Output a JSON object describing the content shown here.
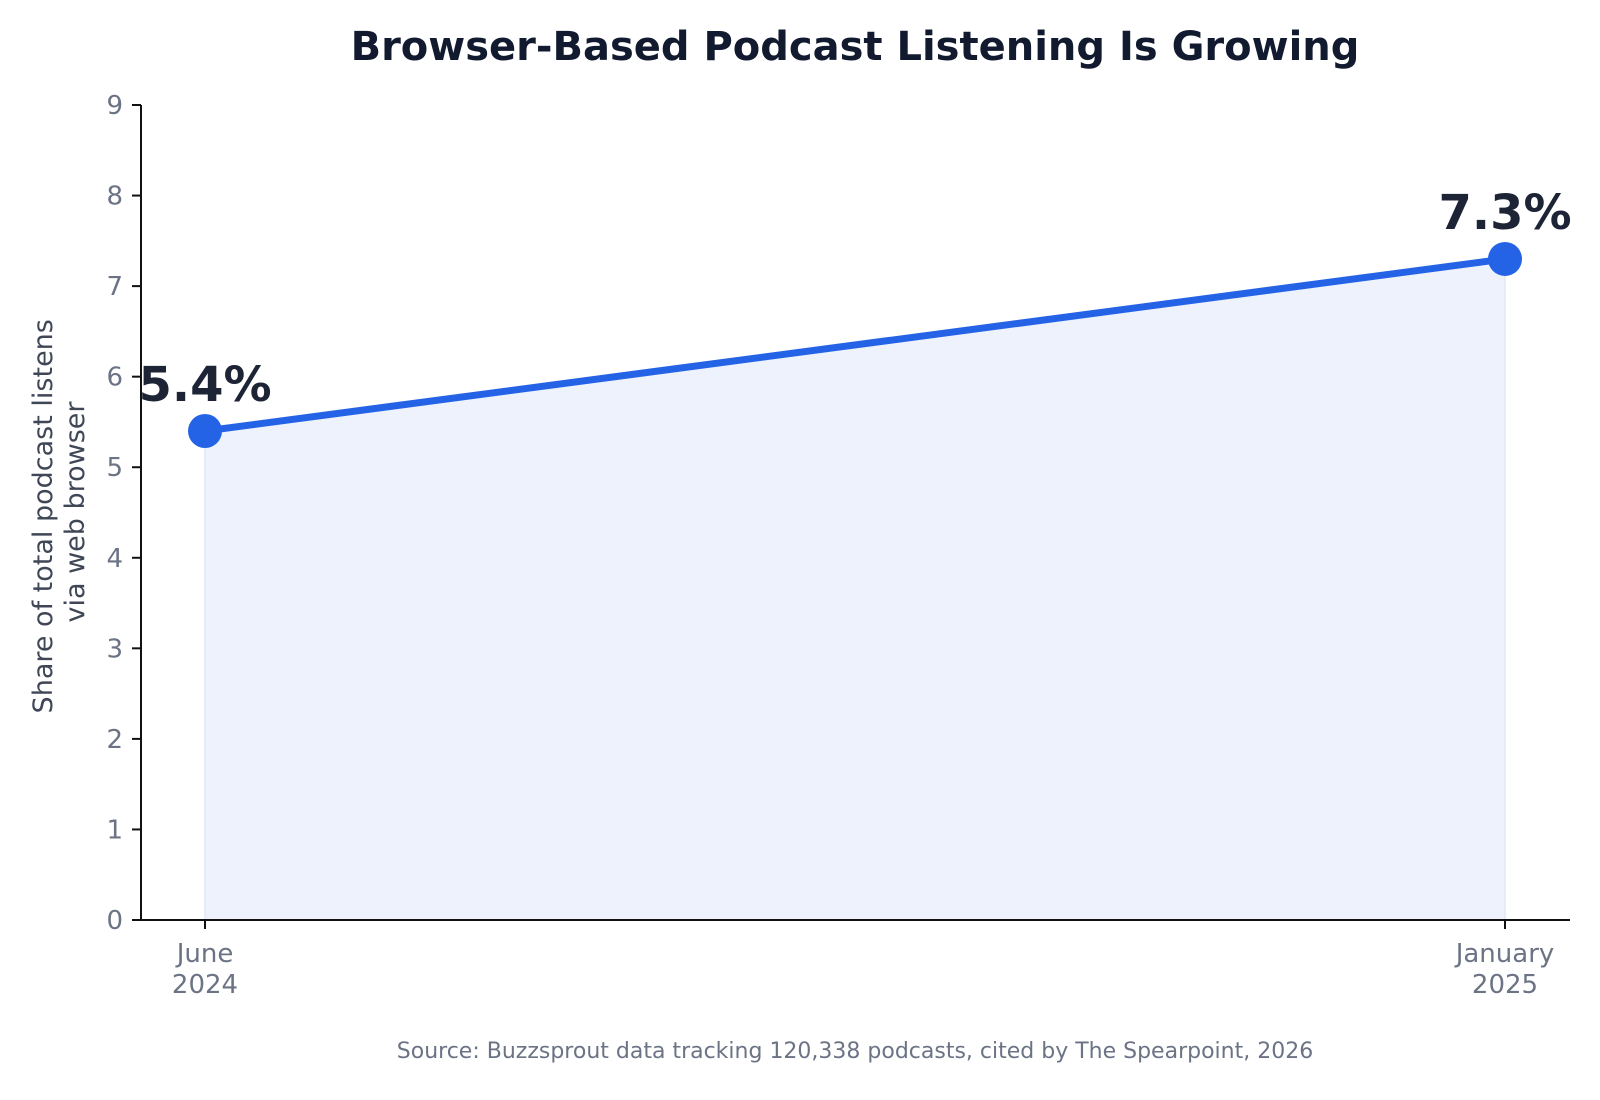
{
  "chart_data": {
    "type": "area",
    "title": "Browser-Based Podcast Listening Is Growing",
    "ylabel_lines": [
      "Share of total podcast listens",
      "via web browser"
    ],
    "ylim": [
      0,
      9
    ],
    "yticks": [
      "0",
      "1",
      "2",
      "3",
      "4",
      "5",
      "6",
      "7",
      "8",
      "9"
    ],
    "categories": [
      {
        "lines": [
          "June",
          "2024"
        ]
      },
      {
        "lines": [
          "January",
          "2025"
        ]
      }
    ],
    "values": [
      5.4,
      7.3
    ],
    "data_labels": [
      "5.4%",
      "7.3%"
    ],
    "grid": false,
    "colors": {
      "line": "#2563e6",
      "marker": "#2563e6",
      "fill": "#edf2fc",
      "axis": "#111111"
    },
    "source": "Source: Buzzsprout data tracking 120,338 podcasts, cited by The Spearpoint, 2026"
  }
}
